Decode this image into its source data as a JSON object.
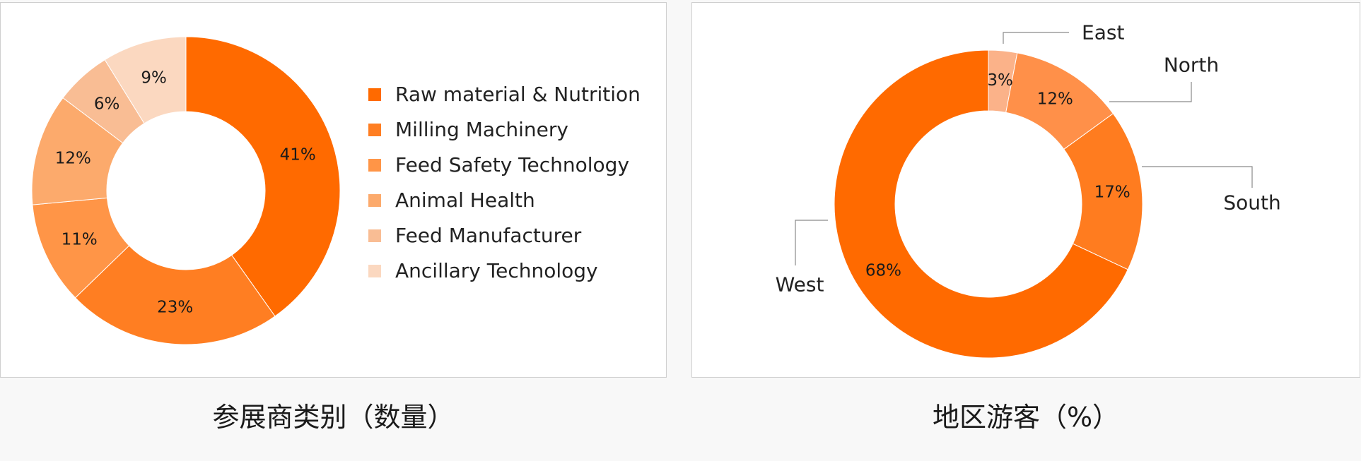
{
  "chart_data": [
    {
      "type": "pie",
      "title": "参展商类别（数量）",
      "categories": [
        "Raw material & Nutrition",
        "Milling Machinery",
        "Feed Safety Technology",
        "Animal Health",
        "Feed Manufacturer",
        "Ancillary Technology"
      ],
      "values": [
        41,
        23,
        11,
        12,
        6,
        9
      ],
      "value_labels": [
        "41%",
        "23%",
        "11%",
        "12%",
        "6%",
        "9%"
      ],
      "colors": [
        "#ff6a00",
        "#ff7e22",
        "#ff9547",
        "#fcaa6c",
        "#f9bd94",
        "#fbd8c0"
      ],
      "legend_placement": "right"
    },
    {
      "type": "pie",
      "title": "地区游客（%）",
      "categories": [
        "East",
        "North",
        "South",
        "West"
      ],
      "values": [
        3,
        12,
        17,
        68
      ],
      "value_labels": [
        "3%",
        "12%",
        "17%",
        "68%"
      ],
      "colors": [
        "#fbb289",
        "#ff9049",
        "#ff7c1f",
        "#ff6a00"
      ],
      "legend_placement": "none"
    }
  ]
}
